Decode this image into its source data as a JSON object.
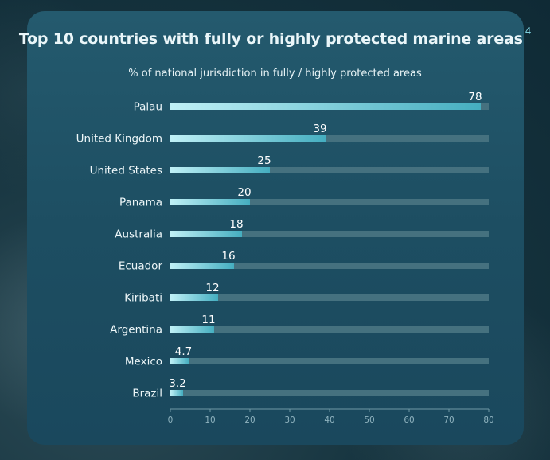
{
  "header": {
    "title": "Top 10 countries with fully or highly protected marine areas",
    "footnote": "4",
    "subtitle": "% of national jurisdiction in fully / highly protected areas"
  },
  "colors": {
    "bar_start": "#bff0f6",
    "bar_end": "#45aec0",
    "track": "#45717f",
    "axis": "#6f99a6"
  },
  "chart_data": {
    "type": "bar",
    "orientation": "horizontal",
    "title": "Top 10 countries with fully or highly protected marine areas",
    "subtitle": "% of national jurisdiction in fully / highly protected areas",
    "categories": [
      "Palau",
      "United Kingdom",
      "United States",
      "Panama",
      "Australia",
      "Ecuador",
      "Kiribati",
      "Argentina",
      "Mexico",
      "Brazil"
    ],
    "values": [
      78,
      39,
      25,
      20,
      18,
      16,
      12,
      11,
      4.7,
      3.2
    ],
    "value_labels": [
      "78",
      "39",
      "25",
      "20",
      "18",
      "16",
      "12",
      "11",
      "4.7",
      "3.2"
    ],
    "xlim": [
      0,
      80
    ],
    "xticks": [
      0,
      10,
      20,
      30,
      40,
      50,
      60,
      70,
      80
    ],
    "grid": false,
    "legend": "none"
  }
}
